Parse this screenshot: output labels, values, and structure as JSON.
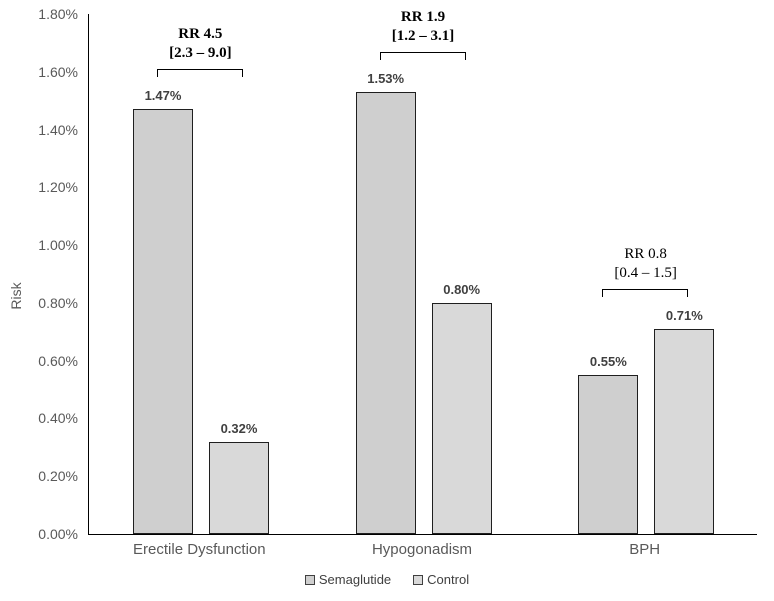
{
  "chart_data": {
    "type": "bar",
    "title": "",
    "ylabel": "Risk",
    "xlabel": "",
    "ylim": [
      0,
      1.8
    ],
    "ytick_step": 0.2,
    "ytick_labels": [
      "0.00%",
      "0.20%",
      "0.40%",
      "0.60%",
      "0.80%",
      "1.00%",
      "1.20%",
      "1.40%",
      "1.60%",
      "1.80%"
    ],
    "grid": false,
    "categories": [
      "Erectile Dysfunction",
      "Hypogonadism",
      "BPH"
    ],
    "series": [
      {
        "name": "Semaglutide",
        "values": [
          1.47,
          1.53,
          0.55
        ],
        "labels": [
          "1.47%",
          "1.53%",
          "0.55%"
        ],
        "color": "#cfcfcf"
      },
      {
        "name": "Control",
        "values": [
          0.32,
          0.8,
          0.71
        ],
        "labels": [
          "0.32%",
          "0.80%",
          "0.71%"
        ],
        "color": "#d9d9d9"
      }
    ],
    "annotations": [
      {
        "rr": "RR 4.5",
        "ci": "[2.3 – 9.0]",
        "bold": true
      },
      {
        "rr": "RR 1.9",
        "ci": "[1.2 – 3.1]",
        "bold": true
      },
      {
        "rr": "RR 0.8",
        "ci": "[0.4 – 1.5]",
        "bold": false
      }
    ],
    "legend": {
      "position": "bottom",
      "items": [
        "Semaglutide",
        "Control"
      ]
    }
  },
  "colors": {
    "bar_border": "#1f1f1f",
    "axis": "#000000",
    "tick_text": "#595959",
    "category_text": "#595959",
    "value_text": "#404040",
    "annotation_text": "#000000",
    "background": "#ffffff"
  }
}
